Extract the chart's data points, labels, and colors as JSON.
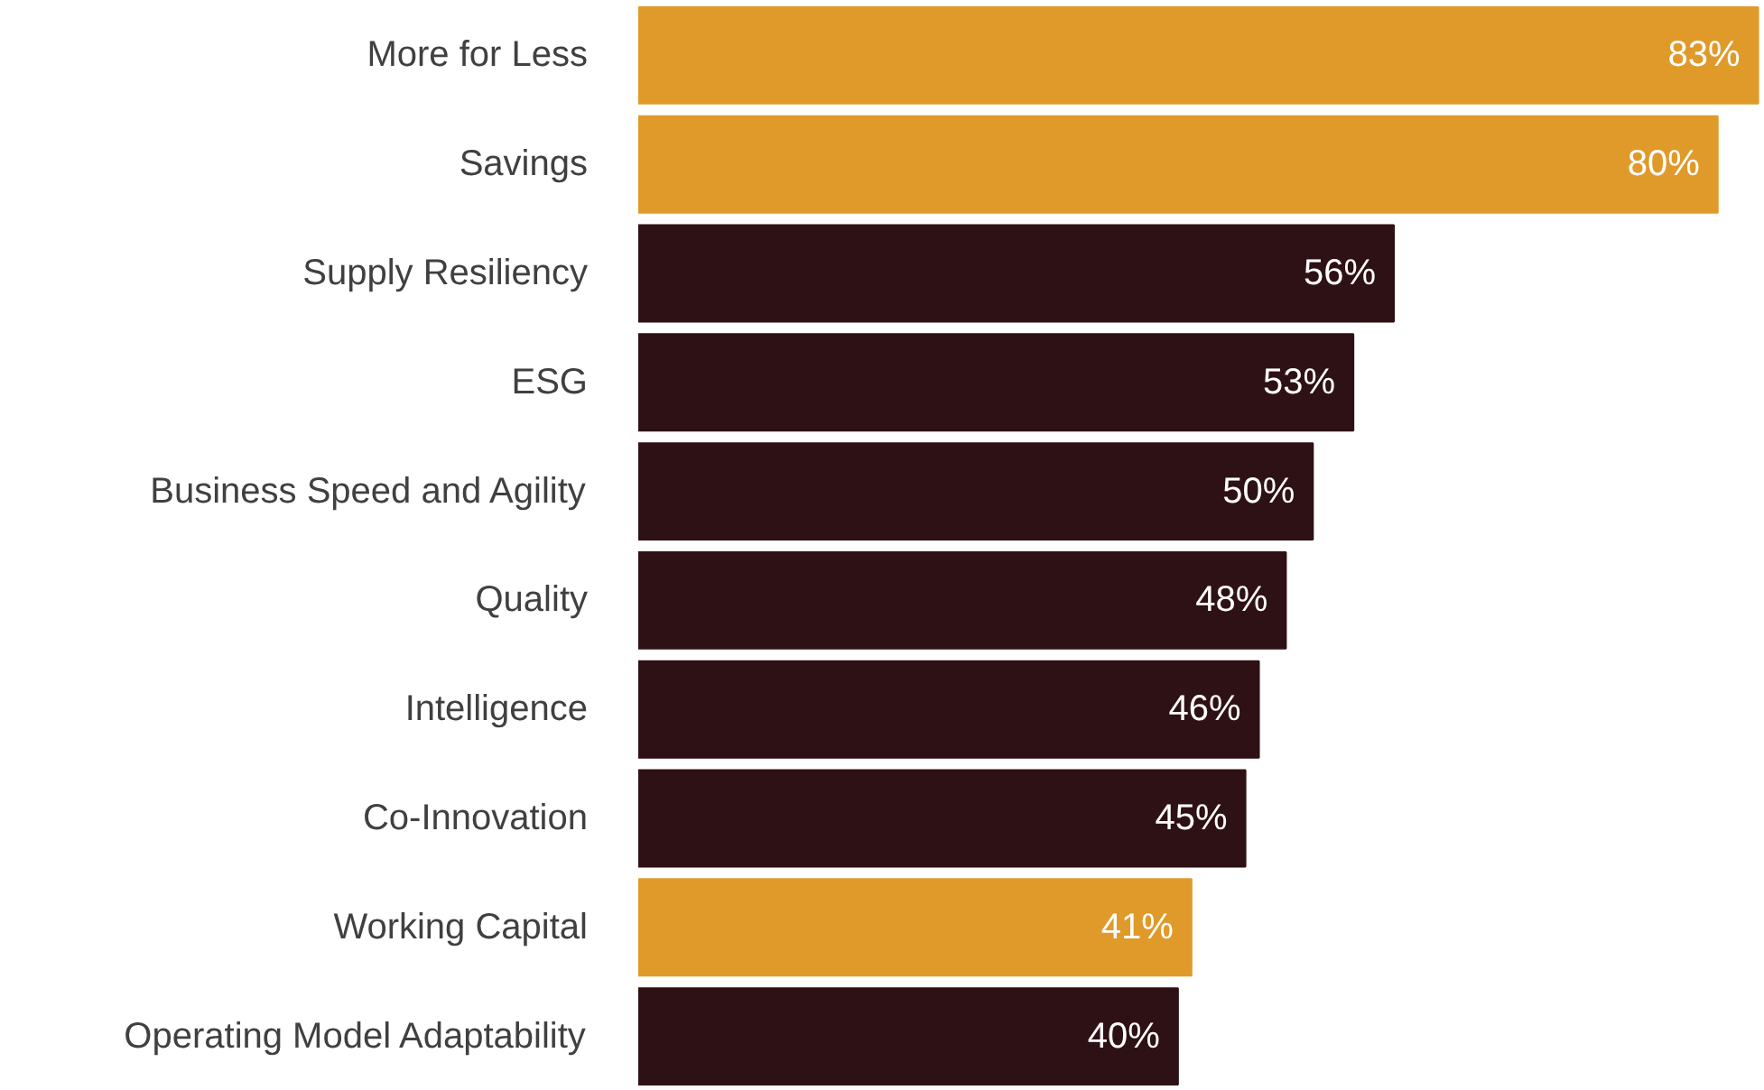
{
  "chart_data": {
    "type": "bar",
    "orientation": "horizontal",
    "categories": [
      "More for Less",
      "Savings",
      "Supply Resiliency",
      "ESG",
      "Business Speed and Agility",
      "Quality",
      "Intelligence",
      "Co-Innovation",
      "Working Capital",
      "Operating Model Adaptability"
    ],
    "values": [
      83,
      80,
      56,
      53,
      50,
      48,
      46,
      45,
      41,
      40
    ],
    "value_labels": [
      "83%",
      "80%",
      "56%",
      "53%",
      "50%",
      "48%",
      "46%",
      "45%",
      "41%",
      "40%"
    ],
    "colors": [
      "#e09a2a",
      "#e09a2a",
      "#2e1114",
      "#2e1114",
      "#2e1114",
      "#2e1114",
      "#2e1114",
      "#2e1114",
      "#e09a2a",
      "#2e1114"
    ],
    "grid": false
  }
}
